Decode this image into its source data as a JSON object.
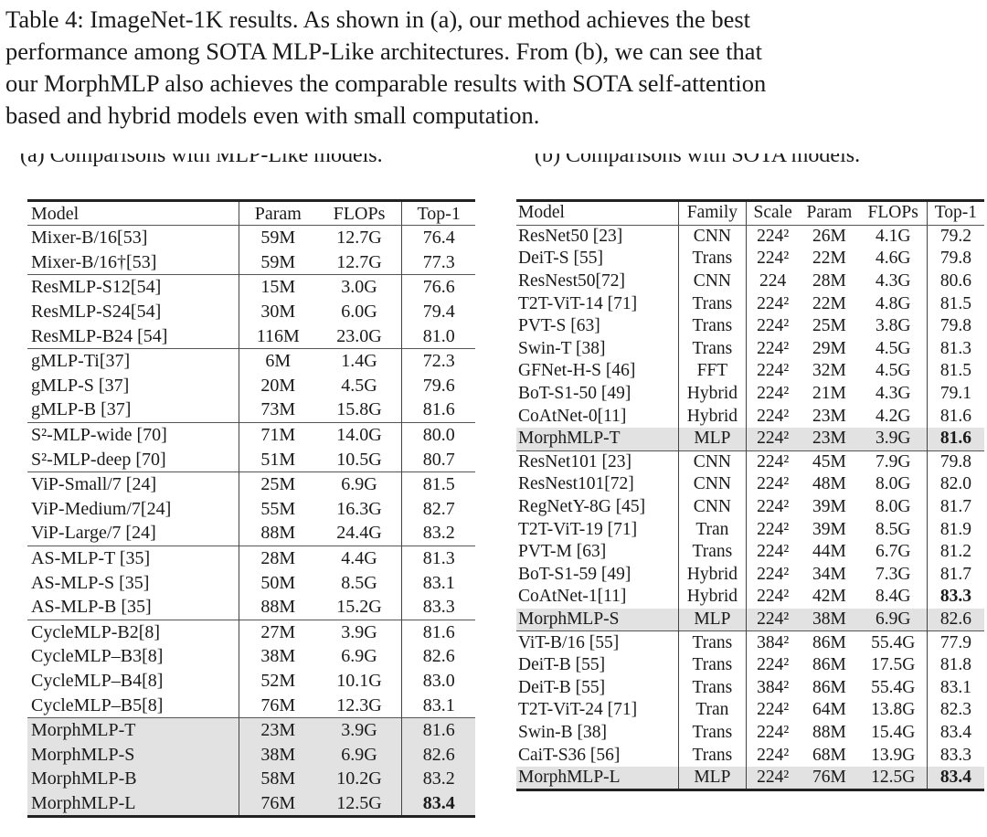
{
  "caption": [
    "Table 4: ImageNet-1K results. As shown in (a), our method achieves the best",
    "performance among SOTA MLP-Like architectures. From (b), we can see that",
    "our MorphMLP also achieves the comparable results with SOTA self-attention",
    "based and hybrid models even with small computation."
  ],
  "table_a": {
    "subcaption": "(a) Comparisons with MLP-Like models.",
    "headers": [
      "Model",
      "Param",
      "FLOPs",
      "Top-1"
    ],
    "rows": [
      [
        "Mixer-B/16[53]",
        "59M",
        "12.7G",
        "76.4"
      ],
      [
        "Mixer-B/16†[53]",
        "59M",
        "12.7G",
        "77.3"
      ],
      [
        "ResMLP-S12[54]",
        "15M",
        "3.0G",
        "76.6"
      ],
      [
        "ResMLP-S24[54]",
        "30M",
        "6.0G",
        "79.4"
      ],
      [
        "ResMLP-B24 [54]",
        "116M",
        "23.0G",
        "81.0"
      ],
      [
        "gMLP-Ti[37]",
        "6M",
        "1.4G",
        "72.3"
      ],
      [
        "gMLP-S [37]",
        "20M",
        "4.5G",
        "79.6"
      ],
      [
        "gMLP-B [37]",
        "73M",
        "15.8G",
        "81.6"
      ],
      [
        "S²-MLP-wide [70]",
        "71M",
        "14.0G",
        "80.0"
      ],
      [
        "S²-MLP-deep [70]",
        "51M",
        "10.5G",
        "80.7"
      ],
      [
        "ViP-Small/7 [24]",
        "25M",
        "6.9G",
        "81.5"
      ],
      [
        "ViP-Medium/7[24]",
        "55M",
        "16.3G",
        "82.7"
      ],
      [
        "ViP-Large/7 [24]",
        "88M",
        "24.4G",
        "83.2"
      ],
      [
        "AS-MLP-T [35]",
        "28M",
        "4.4G",
        "81.3"
      ],
      [
        "AS-MLP-S [35]",
        "50M",
        "8.5G",
        "83.1"
      ],
      [
        "AS-MLP-B [35]",
        "88M",
        "15.2G",
        "83.3"
      ],
      [
        "CycleMLP-B2[8]",
        "27M",
        "3.9G",
        "81.6"
      ],
      [
        "CycleMLP–B3[8]",
        "38M",
        "6.9G",
        "82.6"
      ],
      [
        "CycleMLP–B4[8]",
        "52M",
        "10.1G",
        "83.0"
      ],
      [
        "CycleMLP–B5[8]",
        "76M",
        "12.3G",
        "83.1"
      ],
      [
        "MorphMLP-T",
        "23M",
        "3.9G",
        "81.6"
      ],
      [
        "MorphMLP-S",
        "38M",
        "6.9G",
        "82.6"
      ],
      [
        "MorphMLP-B",
        "58M",
        "10.2G",
        "83.2"
      ],
      [
        "MorphMLP-L",
        "76M",
        "12.5G",
        "83.4"
      ]
    ],
    "group_starts": [
      2,
      5,
      8,
      10,
      13,
      16,
      20
    ],
    "highlighted_rows": [
      20,
      21,
      22,
      23
    ],
    "bold_top1_rows": [
      23
    ]
  },
  "table_b": {
    "subcaption": "(b) Comparisons with SOTA models.",
    "headers": [
      "Model",
      "Family",
      "Scale",
      "Param",
      "FLOPs",
      "Top-1"
    ],
    "rows": [
      [
        "ResNet50 [23]",
        "CNN",
        "224²",
        "26M",
        "4.1G",
        "79.2"
      ],
      [
        "DeiT-S [55]",
        "Trans",
        "224²",
        "22M",
        "4.6G",
        "79.8"
      ],
      [
        "ResNest50[72]",
        "CNN",
        "224",
        "28M",
        "4.3G",
        "80.6"
      ],
      [
        "T2T-ViT-14 [71]",
        "Trans",
        "224²",
        "22M",
        "4.8G",
        "81.5"
      ],
      [
        "PVT-S [63]",
        "Trans",
        "224²",
        "25M",
        "3.8G",
        "79.8"
      ],
      [
        "Swin-T [38]",
        "Trans",
        "224²",
        "29M",
        "4.5G",
        "81.3"
      ],
      [
        "GFNet-H-S [46]",
        "FFT",
        "224²",
        "32M",
        "4.5G",
        "81.5"
      ],
      [
        "BoT-S1-50 [49]",
        "Hybrid",
        "224²",
        "21M",
        "4.3G",
        "79.1"
      ],
      [
        "CoAtNet-0[11]",
        "Hybrid",
        "224²",
        "23M",
        "4.2G",
        "81.6"
      ],
      [
        "MorphMLP-T",
        "MLP",
        "224²",
        "23M",
        "3.9G",
        "81.6"
      ],
      [
        "ResNet101 [23]",
        "CNN",
        "224²",
        "45M",
        "7.9G",
        "79.8"
      ],
      [
        "ResNest101[72]",
        "CNN",
        "224²",
        "48M",
        "8.0G",
        "82.0"
      ],
      [
        "RegNetY-8G [45]",
        "CNN",
        "224²",
        "39M",
        "8.0G",
        "81.7"
      ],
      [
        "T2T-ViT-19 [71]",
        "Tran",
        "224²",
        "39M",
        "8.5G",
        "81.9"
      ],
      [
        "PVT-M [63]",
        "Trans",
        "224²",
        "44M",
        "6.7G",
        "81.2"
      ],
      [
        "BoT-S1-59 [49]",
        "Hybrid",
        "224²",
        "34M",
        "7.3G",
        "81.7"
      ],
      [
        "CoAtNet-1[11]",
        "Hybrid",
        "224²",
        "42M",
        "8.4G",
        "83.3"
      ],
      [
        "MorphMLP-S",
        "MLP",
        "224²",
        "38M",
        "6.9G",
        "82.6"
      ],
      [
        "ViT-B/16 [55]",
        "Trans",
        "384²",
        "86M",
        "55.4G",
        "77.9"
      ],
      [
        "DeiT-B [55]",
        "Trans",
        "224²",
        "86M",
        "17.5G",
        "81.8"
      ],
      [
        "DeiT-B [55]",
        "Trans",
        "384²",
        "86M",
        "55.4G",
        "83.1"
      ],
      [
        "T2T-ViT-24 [71]",
        "Tran",
        "224²",
        "64M",
        "13.8G",
        "82.3"
      ],
      [
        "Swin-B [38]",
        "Trans",
        "224²",
        "88M",
        "15.4G",
        "83.4"
      ],
      [
        "CaiT-S36 [56]",
        "Trans",
        "224²",
        "68M",
        "13.9G",
        "83.3"
      ],
      [
        "MorphMLP-L",
        "MLP",
        "224²",
        "76M",
        "12.5G",
        "83.4"
      ]
    ],
    "group_starts": [
      10,
      18
    ],
    "highlighted_rows": [
      9,
      17,
      24
    ],
    "bold_top1_rows": [
      9,
      16,
      24
    ]
  }
}
